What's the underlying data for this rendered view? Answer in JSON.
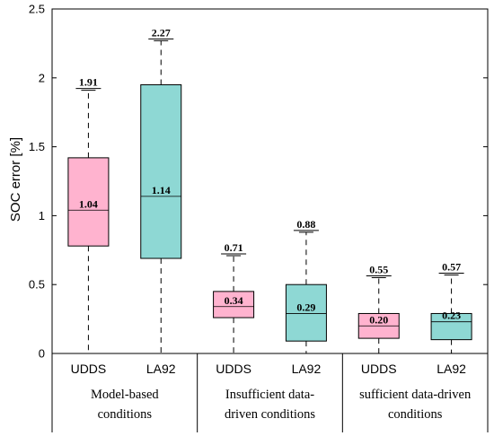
{
  "chart_data": {
    "type": "box",
    "ylabel": "SOC error [%]",
    "ylim": [
      0,
      2.5
    ],
    "yticks": [
      "0",
      "0.5",
      "1",
      "1.5",
      "2",
      "2.5"
    ],
    "grid": false,
    "groups": [
      {
        "label_lines": [
          "Model-based",
          "conditions"
        ],
        "boxes": [
          {
            "category": "UDDS",
            "color": "#ffb3cf",
            "min": 0.0,
            "q1": 0.78,
            "median": 1.04,
            "q3": 1.42,
            "max": 1.91,
            "max_label": "1.91",
            "median_label": "1.04"
          },
          {
            "category": "LA92",
            "color": "#8ed8d4",
            "min": 0.0,
            "q1": 0.69,
            "median": 1.14,
            "q3": 1.95,
            "max": 2.27,
            "max_label": "2.27",
            "median_label": "1.14"
          }
        ]
      },
      {
        "label_lines": [
          "Insufficient data-",
          "driven conditions"
        ],
        "boxes": [
          {
            "category": "UDDS",
            "color": "#ffb3cf",
            "min": 0.0,
            "q1": 0.26,
            "median": 0.34,
            "q3": 0.45,
            "max": 0.71,
            "max_label": "0.71",
            "median_label": "0.34"
          },
          {
            "category": "LA92",
            "color": "#8ed8d4",
            "min": 0.0,
            "q1": 0.09,
            "median": 0.29,
            "q3": 0.5,
            "max": 0.88,
            "max_label": "0.88",
            "median_label": "0.29"
          }
        ]
      },
      {
        "label_lines": [
          "sufficient data-driven",
          "conditions"
        ],
        "boxes": [
          {
            "category": "UDDS",
            "color": "#ffb3cf",
            "min": 0.0,
            "q1": 0.11,
            "median": 0.2,
            "q3": 0.29,
            "max": 0.55,
            "max_label": "0.55",
            "median_label": "0.20"
          },
          {
            "category": "LA92",
            "color": "#8ed8d4",
            "min": 0.0,
            "q1": 0.1,
            "median": 0.23,
            "q3": 0.29,
            "max": 0.57,
            "max_label": "0.57",
            "median_label": "0.23"
          }
        ]
      }
    ]
  }
}
